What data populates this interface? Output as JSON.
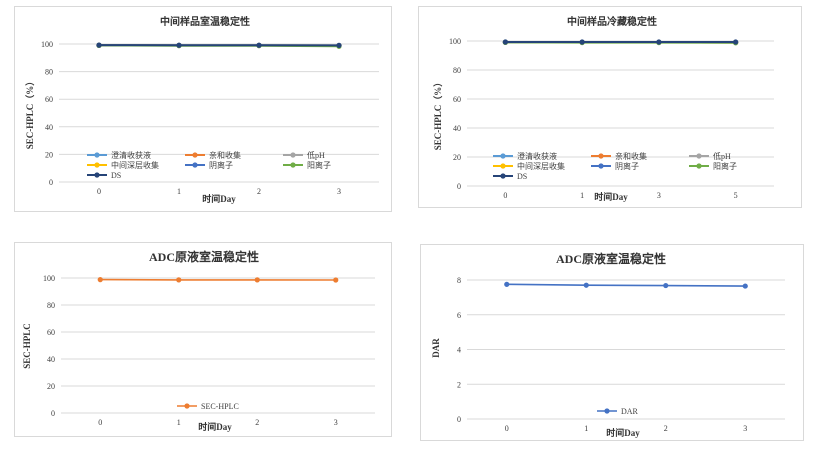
{
  "colors": {
    "clarified": "#5b9bd5",
    "combined": "#ed7d31",
    "lowph": "#a5a5a5",
    "deep": "#ffc000",
    "anion": "#4472c4",
    "cation": "#70ad47",
    "ds": "#264478",
    "adc_sec": "#ed7d31",
    "dar": "#4472c4",
    "grid": "#d9d9d9"
  },
  "chart_data": [
    {
      "type": "line",
      "title": "中间样品室温稳定性",
      "xlabel": "时间Day",
      "ylabel": "SEC-HPLC（%）",
      "categories": [
        "0",
        "1",
        "2",
        "3"
      ],
      "ylim": [
        0,
        100
      ],
      "yticks": [
        "0",
        "20",
        "40",
        "60",
        "80",
        "100"
      ],
      "grid": "horizontal",
      "legend": "bottom",
      "series": [
        {
          "name": "澄清收获液",
          "values": [
            99.2,
            99.0,
            99.0,
            98.9
          ]
        },
        {
          "name": "亲和收集",
          "values": [
            99.0,
            98.9,
            98.9,
            98.8
          ]
        },
        {
          "name": "低pH",
          "values": [
            99.0,
            98.9,
            98.9,
            98.8
          ]
        },
        {
          "name": "中间深层收集",
          "values": [
            99.1,
            99.0,
            99.0,
            98.9
          ]
        },
        {
          "name": "阴离子",
          "values": [
            99.1,
            99.0,
            99.0,
            98.9
          ]
        },
        {
          "name": "阳离子",
          "values": [
            99.0,
            98.8,
            98.8,
            98.3
          ]
        },
        {
          "name": "DS",
          "values": [
            99.2,
            99.1,
            99.1,
            99.0
          ]
        }
      ]
    },
    {
      "type": "line",
      "title": "中间样品冷藏稳定性",
      "xlabel": "时间Day",
      "ylabel": "SEC-HPLC（%）",
      "categories": [
        "0",
        "1",
        "3",
        "5"
      ],
      "ylim": [
        0,
        100
      ],
      "yticks": [
        "0",
        "20",
        "40",
        "60",
        "80",
        "100"
      ],
      "grid": "horizontal",
      "legend": "bottom",
      "series": [
        {
          "name": "澄清收获液",
          "values": [
            99.3,
            99.2,
            99.2,
            99.2
          ]
        },
        {
          "name": "亲和收集",
          "values": [
            99.1,
            99.0,
            99.0,
            98.9
          ]
        },
        {
          "name": "低pH",
          "values": [
            99.1,
            99.0,
            99.0,
            98.9
          ]
        },
        {
          "name": "中间深层收集",
          "values": [
            99.2,
            99.1,
            99.1,
            99.0
          ]
        },
        {
          "name": "阴离子",
          "values": [
            99.2,
            99.1,
            99.1,
            99.1
          ]
        },
        {
          "name": "阳离子",
          "values": [
            99.0,
            98.9,
            98.9,
            98.8
          ]
        },
        {
          "name": "DS",
          "values": [
            99.3,
            99.3,
            99.3,
            99.3
          ]
        }
      ]
    },
    {
      "type": "line",
      "title": "ADC原液室温稳定性",
      "xlabel": "时间Day",
      "ylabel": "SEC-HPLC",
      "categories": [
        "0",
        "1",
        "2",
        "3"
      ],
      "ylim": [
        0,
        100
      ],
      "yticks": [
        "0",
        "20",
        "40",
        "60",
        "80",
        "100"
      ],
      "grid": "horizontal",
      "legend": "bottom",
      "series": [
        {
          "name": "SEC-HPLC",
          "values": [
            98.8,
            98.6,
            98.6,
            98.5
          ]
        }
      ]
    },
    {
      "type": "line",
      "title": "ADC原液室温稳定性",
      "xlabel": "时间Day",
      "ylabel": "DAR",
      "categories": [
        "0",
        "1",
        "2",
        "3"
      ],
      "ylim": [
        0,
        8
      ],
      "yticks": [
        "0",
        "2",
        "4",
        "6",
        "8"
      ],
      "grid": "horizontal",
      "legend": "bottom",
      "series": [
        {
          "name": "DAR",
          "values": [
            7.75,
            7.7,
            7.68,
            7.65
          ]
        }
      ]
    }
  ]
}
